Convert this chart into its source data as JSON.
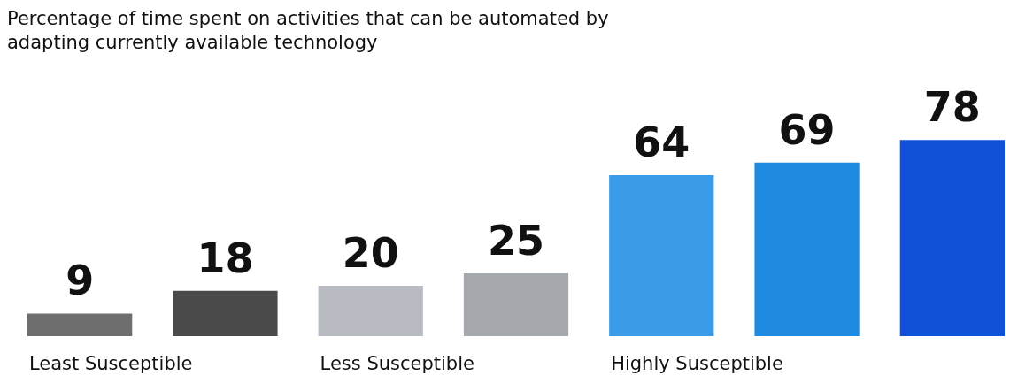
{
  "chart_data": {
    "type": "bar",
    "title": "Percentage of time spent on activities that can be automated by adapting currently available technology",
    "categories": [
      null,
      null,
      null,
      null,
      null,
      null,
      null
    ],
    "values": [
      9,
      18,
      20,
      25,
      64,
      69,
      78
    ],
    "colors": [
      "#6e6e6e",
      "#4a4a4a",
      "#b8bcc2",
      "#a5a8ad",
      "#3b9be6",
      "#1e8ae0",
      "#1150d8"
    ],
    "data_labels": true,
    "annotations": [
      "Least Susceptible",
      "Less Susceptible",
      "Highly Susceptible"
    ]
  }
}
